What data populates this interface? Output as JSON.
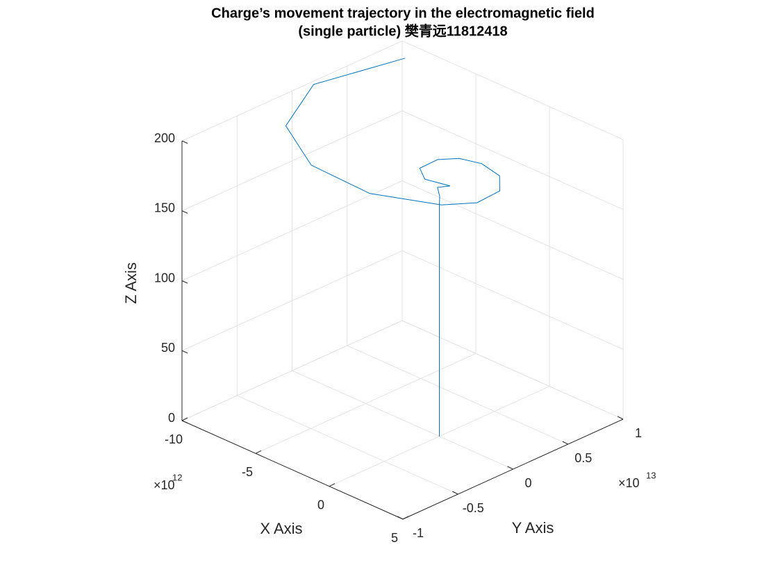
{
  "chart_data": {
    "type": "line3d",
    "title": [
      "Charge’s movement trajectory in the electromagnetic field",
      "(single particle) 樊青远11812418"
    ],
    "x_label": "X Axis",
    "y_label": "Y Axis",
    "z_label": "Z Axis",
    "x_multiplier": {
      "base": "×10",
      "exponent": "12"
    },
    "y_multiplier": {
      "base": "×10",
      "exponent": "13"
    },
    "xlim": [
      -10,
      5
    ],
    "xticks": [
      -10,
      -5,
      0,
      5
    ],
    "ylim": [
      -1,
      1
    ],
    "yticks": [
      -1,
      -0.5,
      0,
      0.5,
      1
    ],
    "zlim": [
      0,
      200
    ],
    "zticks": [
      0,
      50,
      100,
      150,
      200
    ],
    "grid": true,
    "series": [
      {
        "color": "#0072bd",
        "x": [
          0,
          0,
          -0.47,
          -1.12,
          -0.69,
          -1.96,
          -2.75,
          -2.58,
          -1.71,
          -0.34,
          1.4,
          2.76,
          3.08,
          2.24,
          -0.76,
          -4.59,
          -8.11,
          -9.96,
          -8.6
        ],
        "y": [
          0,
          0,
          0.066,
          0.133,
          0.19,
          0.13,
          0.19,
          0.33,
          0.41,
          0.43,
          0.36,
          0.18,
          -0.07,
          -0.28,
          -0.53,
          -0.55,
          -0.31,
          0.19,
          0.84
        ],
        "z": [
          0,
          166,
          167,
          168,
          169,
          170,
          172,
          174,
          176,
          178,
          180,
          182,
          184,
          186,
          189,
          192,
          195,
          198,
          200
        ]
      }
    ]
  }
}
